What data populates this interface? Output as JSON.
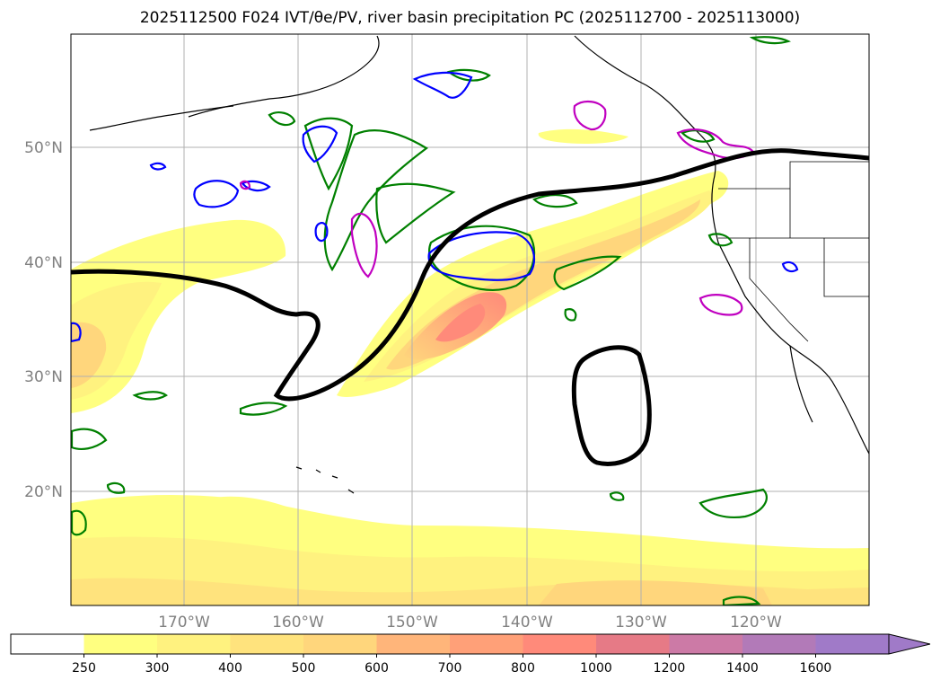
{
  "title": "2025112500 F024 IVT/θe/PV, river basin precipitation PC (2025112700 - 2025113000)",
  "lat_labels": [
    "50°N",
    "40°N",
    "30°N",
    "20°N"
  ],
  "lon_labels": [
    "170°W",
    "160°W",
    "150°W",
    "140°W",
    "130°W",
    "120°W"
  ],
  "colorbar": {
    "ticks": [
      "250",
      "300",
      "400",
      "500",
      "600",
      "700",
      "800",
      "1000",
      "1200",
      "1400",
      "1600"
    ],
    "colors": [
      "#ffffff",
      "#ffff80",
      "#fff27f",
      "#ffe37d",
      "#ffd67c",
      "#ffb57a",
      "#ffa078",
      "#ff8a7a",
      "#e67a86",
      "#cc7aa6",
      "#b27ab8",
      "#a07ac8"
    ],
    "extend": "max"
  },
  "styles": {
    "ivt_fill": [
      "#ffff80",
      "#fff27f",
      "#ffe37d",
      "#ffd67c",
      "#ffb57a",
      "#ffa078",
      "#ff8a7a"
    ],
    "pv_contour": "#008000",
    "theta_contour": "#0000ff",
    "precip_contour": "#c000c0",
    "jet_contour": "#000000",
    "coastline": "#000000",
    "grid": "#b0b0b0"
  }
}
